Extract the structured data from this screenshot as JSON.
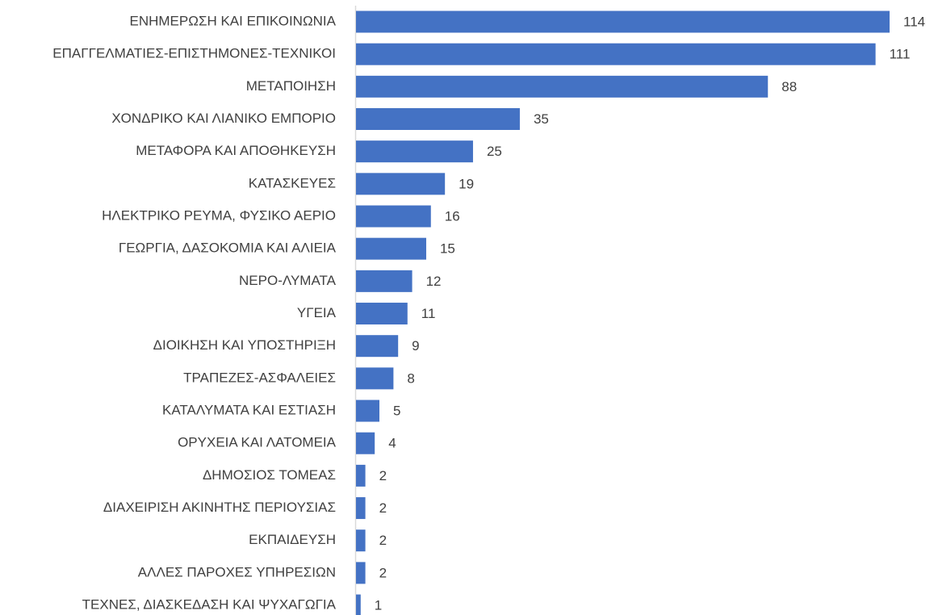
{
  "chart_data": {
    "type": "barh",
    "categories": [
      "ΕΝΗΜΕΡΩΣΗ ΚΑΙ ΕΠΙΚΟΙΝΩΝΙΑ",
      "ΕΠΑΓΓΕΛΜΑΤΙΕΣ-ΕΠΙΣΤΗΜΟΝΕΣ-ΤΕΧΝΙΚΟΙ",
      "ΜΕΤΑΠΟΙΗΣΗ",
      "ΧΟΝΔΡΙΚΟ ΚΑΙ ΛΙΑΝΙΚΟ ΕΜΠΟΡΙΟ",
      "ΜΕΤΑΦΟΡΑ ΚΑΙ ΑΠΟΘΗΚΕΥΣΗ",
      "ΚΑΤΑΣΚΕΥΕΣ",
      "ΗΛΕΚΤΡΙΚΟ ΡΕΥΜΑ, ΦΥΣΙΚΟ ΑΕΡΙΟ",
      "ΓΕΩΡΓΙΑ, ΔΑΣΟΚΟΜΙΑ ΚΑΙ ΑΛΙΕΙΑ",
      "ΝΕΡΟ-ΛΥΜΑΤΑ",
      "ΥΓΕΙΑ",
      "ΔΙΟΙΚΗΣΗ ΚΑΙ ΥΠΟΣΤΗΡΙΞΗ",
      "ΤΡΑΠΕΖΕΣ-ΑΣΦΑΛΕΙΕΣ",
      "ΚΑΤΑΛΥΜΑΤΑ ΚΑΙ ΕΣΤΙΑΣΗ",
      "ΟΡΥΧΕΙΑ ΚΑΙ ΛΑΤΟΜΕΙΑ",
      "ΔΗΜΟΣΙΟΣ ΤΟΜΕΑΣ",
      "ΔΙΑΧΕΙΡΙΣΗ ΑΚΙΝΗΤΗΣ ΠΕΡΙΟΥΣΙΑΣ",
      "ΕΚΠΑΙΔΕΥΣΗ",
      "ΑΛΛΕΣ ΠΑΡΟΧΕΣ ΥΠΗΡΕΣΙΩΝ",
      "ΤΕΧΝΕΣ, ΔΙΑΣΚΕΔΑΣΗ ΚΑΙ ΨΥΧΑΓΩΓΙΑ"
    ],
    "values": [
      114,
      111,
      88,
      35,
      25,
      19,
      16,
      15,
      12,
      11,
      9,
      8,
      5,
      4,
      2,
      2,
      2,
      2,
      1
    ],
    "color": "#4472c4"
  }
}
